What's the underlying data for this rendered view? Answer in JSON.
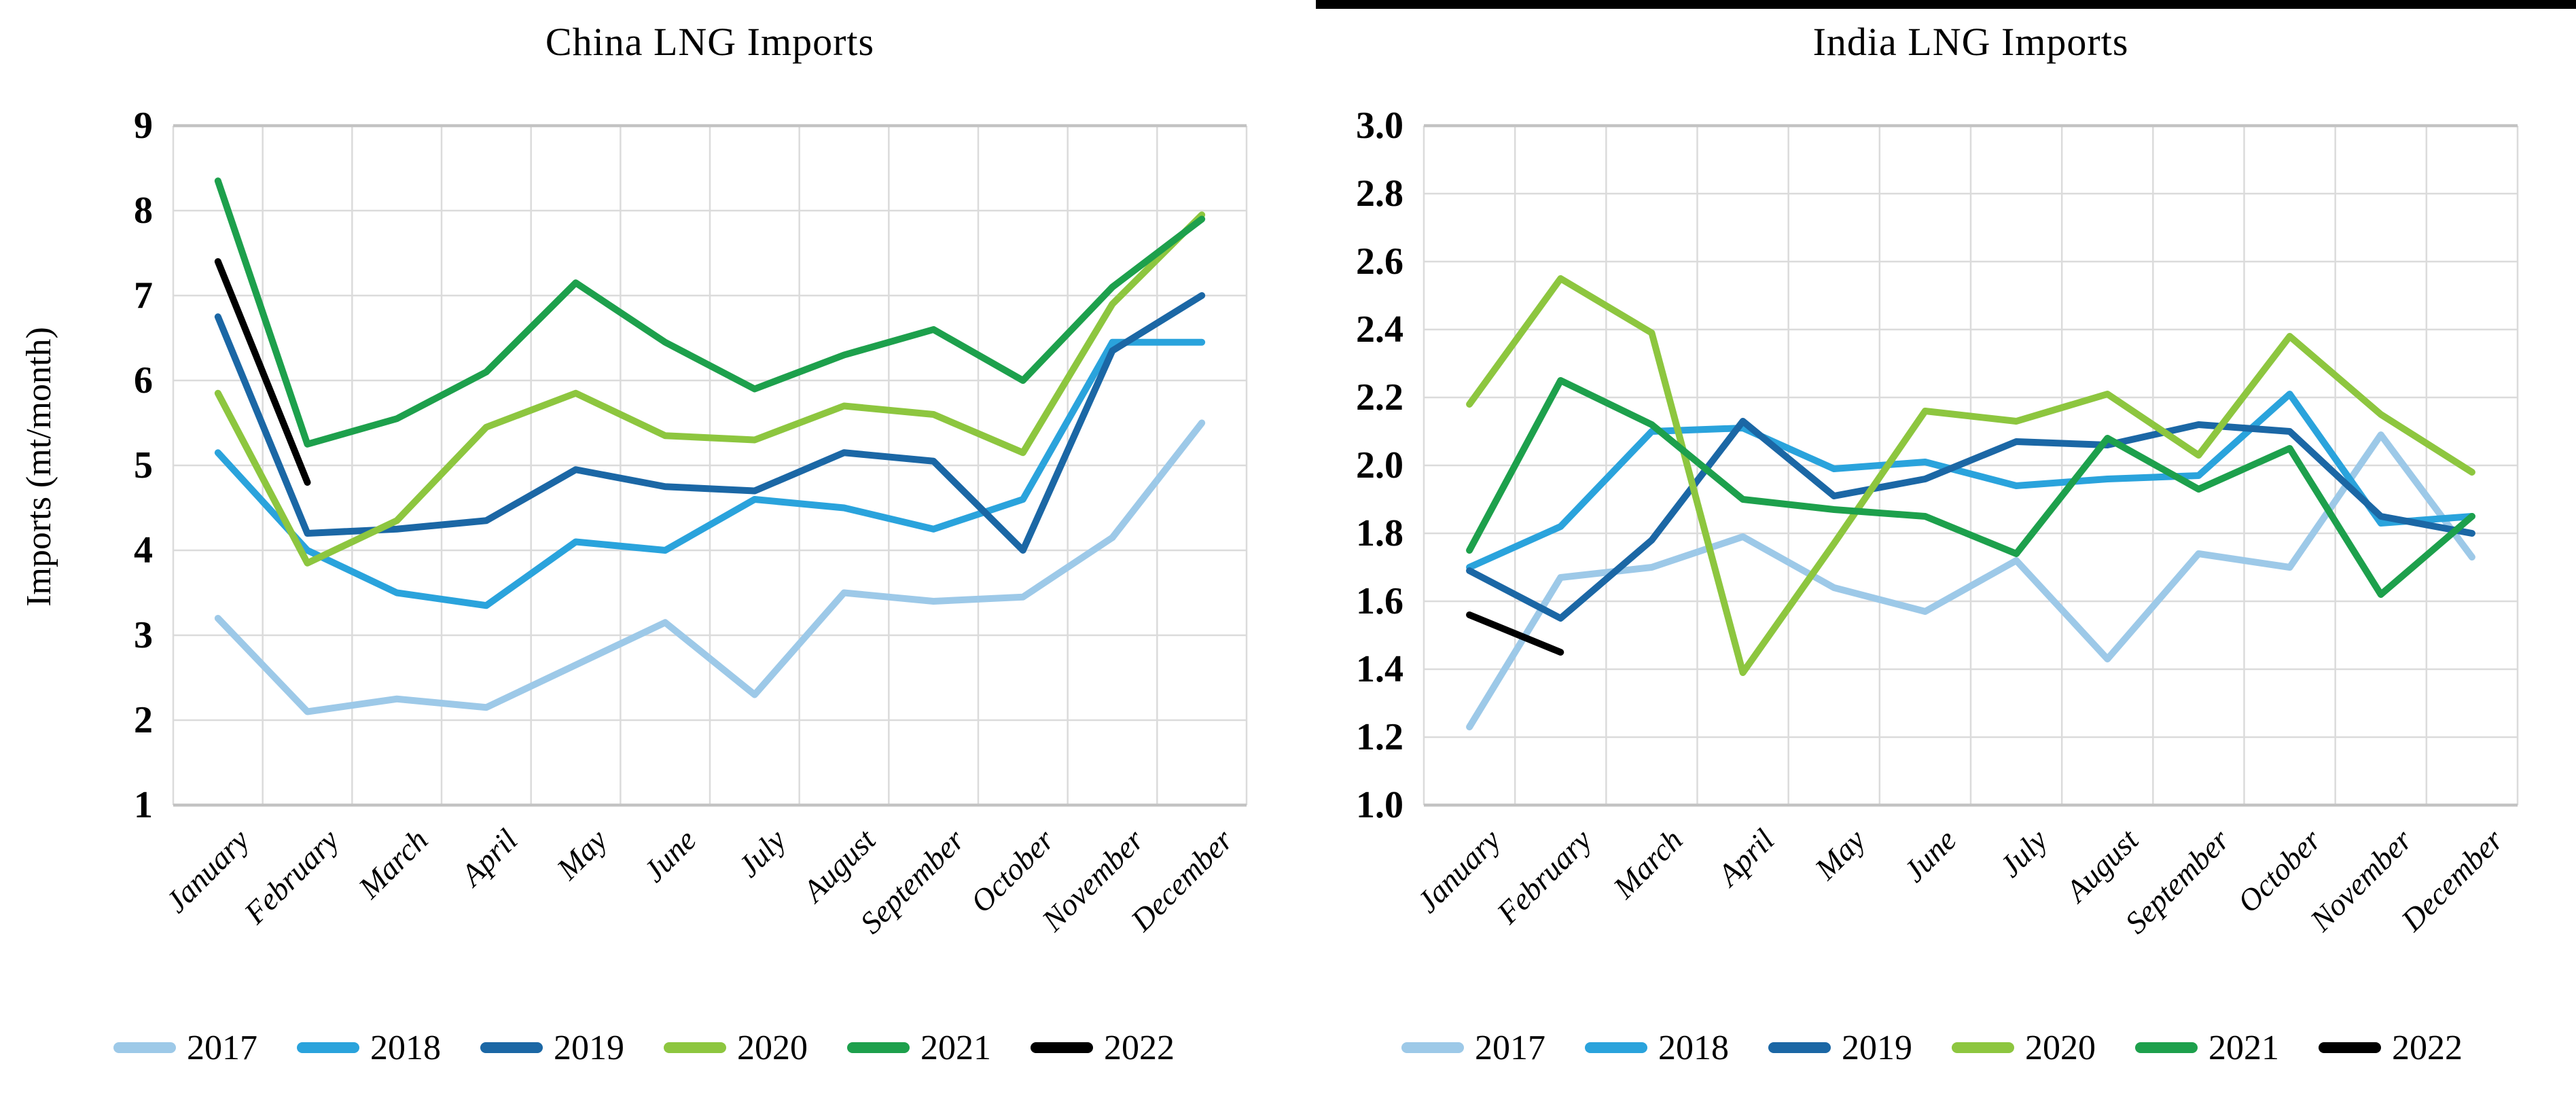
{
  "months": [
    "January",
    "February",
    "March",
    "April",
    "May",
    "June",
    "July",
    "August",
    "September",
    "October",
    "November",
    "December"
  ],
  "top_bar": {
    "color": "#000000"
  },
  "chart_data": [
    {
      "type": "line",
      "title": "China LNG Imports",
      "xlabel": "",
      "ylabel": "Imports (mt/month)",
      "ylim": [
        1,
        9
      ],
      "ytick_step": 1,
      "ytick_decimals": 0,
      "grid": true,
      "legend_position": "bottom",
      "gridline_color": "#DBDBDB",
      "border_gridline_color": "#C3C3C3",
      "categories": [
        "January",
        "February",
        "March",
        "April",
        "May",
        "June",
        "July",
        "August",
        "September",
        "October",
        "November",
        "December"
      ],
      "series": [
        {
          "name": "2017",
          "color": "#9DC9E8",
          "values": [
            3.2,
            2.1,
            2.25,
            2.15,
            2.65,
            3.15,
            2.3,
            3.5,
            3.4,
            3.45,
            4.15,
            5.5
          ]
        },
        {
          "name": "2018",
          "color": "#2AA3DC",
          "values": [
            5.15,
            4.0,
            3.5,
            3.35,
            4.1,
            4.0,
            4.6,
            4.5,
            4.25,
            4.6,
            6.45,
            6.45
          ]
        },
        {
          "name": "2019",
          "color": "#1B67A5",
          "values": [
            6.75,
            4.2,
            4.25,
            4.35,
            4.95,
            4.75,
            4.7,
            5.15,
            5.05,
            4.0,
            6.35,
            7.0
          ]
        },
        {
          "name": "2020",
          "color": "#8DC63F",
          "values": [
            5.85,
            3.85,
            4.35,
            5.45,
            5.85,
            5.35,
            5.3,
            5.7,
            5.6,
            5.15,
            6.9,
            7.95
          ]
        },
        {
          "name": "2021",
          "color": "#1DA04C",
          "values": [
            8.35,
            5.25,
            5.55,
            6.1,
            7.15,
            6.45,
            5.9,
            6.3,
            6.6,
            6.0,
            7.1,
            7.9
          ]
        },
        {
          "name": "2022",
          "color": "#000000",
          "values": [
            7.4,
            4.8,
            null,
            null,
            null,
            null,
            null,
            null,
            null,
            null,
            null,
            null
          ]
        }
      ]
    },
    {
      "type": "line",
      "title": "India LNG Imports",
      "xlabel": "",
      "ylabel": "",
      "ylim": [
        1.0,
        3.0
      ],
      "ytick_step": 0.2,
      "ytick_decimals": 1,
      "grid": true,
      "legend_position": "bottom",
      "gridline_color": "#DBDBDB",
      "border_gridline_color": "#C3C3C3",
      "categories": [
        "January",
        "February",
        "March",
        "April",
        "May",
        "June",
        "July",
        "August",
        "September",
        "October",
        "November",
        "December"
      ],
      "series": [
        {
          "name": "2017",
          "color": "#9DC9E8",
          "values": [
            1.23,
            1.67,
            1.7,
            1.79,
            1.64,
            1.57,
            1.72,
            1.43,
            1.74,
            1.7,
            2.09,
            1.73
          ]
        },
        {
          "name": "2018",
          "color": "#2AA3DC",
          "values": [
            1.7,
            1.82,
            2.1,
            2.11,
            1.99,
            2.01,
            1.94,
            1.96,
            1.97,
            2.21,
            1.83,
            1.85
          ]
        },
        {
          "name": "2019",
          "color": "#1B67A5",
          "values": [
            1.69,
            1.55,
            1.78,
            2.13,
            1.91,
            1.96,
            2.07,
            2.06,
            2.12,
            2.1,
            1.85,
            1.8
          ]
        },
        {
          "name": "2020",
          "color": "#8DC63F",
          "values": [
            2.18,
            2.55,
            2.39,
            1.39,
            1.77,
            2.16,
            2.13,
            2.21,
            2.03,
            2.38,
            2.15,
            1.98
          ]
        },
        {
          "name": "2021",
          "color": "#1DA04C",
          "values": [
            1.75,
            2.25,
            2.12,
            1.9,
            1.87,
            1.85,
            1.74,
            2.08,
            1.93,
            2.05,
            1.62,
            1.85
          ]
        },
        {
          "name": "2022",
          "color": "#000000",
          "values": [
            1.56,
            1.45,
            null,
            null,
            null,
            null,
            null,
            null,
            null,
            null,
            null,
            null
          ]
        }
      ]
    }
  ]
}
